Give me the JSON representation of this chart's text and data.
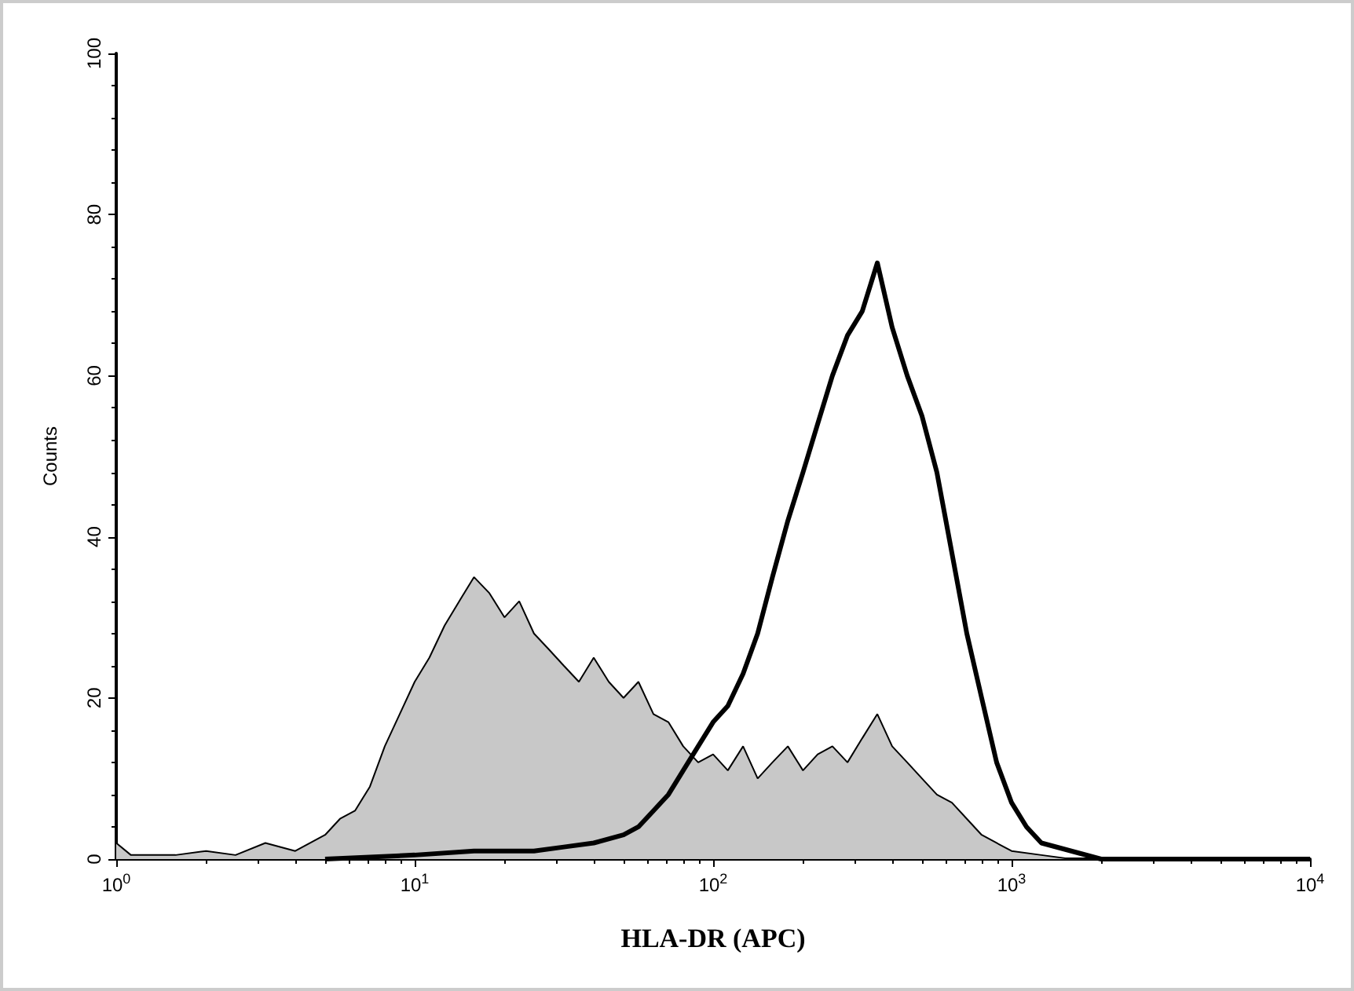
{
  "chart_data": {
    "type": "area",
    "xlabel": "HLA-DR (APC)",
    "ylabel": "Counts",
    "log": "x",
    "marker": "none",
    "xlim": [
      1,
      10000
    ],
    "ylim": [
      0,
      100
    ],
    "xticks": [
      {
        "value": 1,
        "label": "10$^{0}$"
      },
      {
        "value": 10,
        "label": "10$^{1}$"
      },
      {
        "value": 100,
        "label": "10$^{2}$"
      },
      {
        "value": 1000,
        "label": "10$^{3}$"
      },
      {
        "value": 10000,
        "label": "10$^{4}$"
      }
    ],
    "yticks": [
      0,
      20,
      40,
      60,
      80,
      100
    ],
    "series": [
      {
        "type": "area",
        "color": "#c8c8c8",
        "x": [
          1,
          1.12,
          1.58,
          2,
          2.51,
          3.16,
          3.98,
          5.01,
          5.62,
          6.31,
          7.08,
          7.94,
          8.91,
          10,
          11.2,
          12.6,
          14.1,
          15.8,
          17.8,
          20,
          22.4,
          25.1,
          28.2,
          31.6,
          35.5,
          39.8,
          44.7,
          50.1,
          56.2,
          63.1,
          70.8,
          79.4,
          89.1,
          100,
          112,
          126,
          141,
          158,
          178,
          200,
          224,
          251,
          282,
          316,
          355,
          398,
          447,
          501,
          562,
          631,
          708,
          794,
          891,
          1000,
          1259,
          1585,
          1995,
          10000
        ],
        "values": [
          2,
          0.5,
          0.5,
          1,
          0.5,
          2,
          1,
          3,
          5,
          6,
          9,
          14,
          18,
          22,
          25,
          29,
          32,
          35,
          33,
          30,
          32,
          28,
          26,
          24,
          22,
          25,
          22,
          20,
          22,
          18,
          17,
          14,
          12,
          13,
          11,
          14,
          10,
          12,
          14,
          11,
          13,
          14,
          12,
          15,
          18,
          14,
          12,
          10,
          8,
          7,
          5,
          3,
          2,
          1,
          0.5,
          0,
          0,
          0
        ]
      },
      {
        "type": "line",
        "color": "#000000",
        "x": [
          5.01,
          10,
          15.8,
          25.1,
          31.6,
          39.8,
          50.1,
          56.2,
          63.1,
          70.8,
          79.4,
          89.1,
          100,
          112,
          126,
          141,
          158,
          178,
          200,
          224,
          251,
          282,
          316,
          355,
          398,
          447,
          501,
          562,
          631,
          708,
          794,
          891,
          1000,
          1122,
          1259,
          1585,
          1995,
          10000
        ],
        "values": [
          0,
          0.5,
          1,
          1,
          1.5,
          2,
          3,
          4,
          6,
          8,
          11,
          14,
          17,
          19,
          23,
          28,
          35,
          42,
          48,
          54,
          60,
          65,
          68,
          74,
          66,
          60,
          55,
          48,
          38,
          28,
          20,
          12,
          7,
          4,
          2,
          1,
          0,
          0
        ]
      }
    ]
  }
}
